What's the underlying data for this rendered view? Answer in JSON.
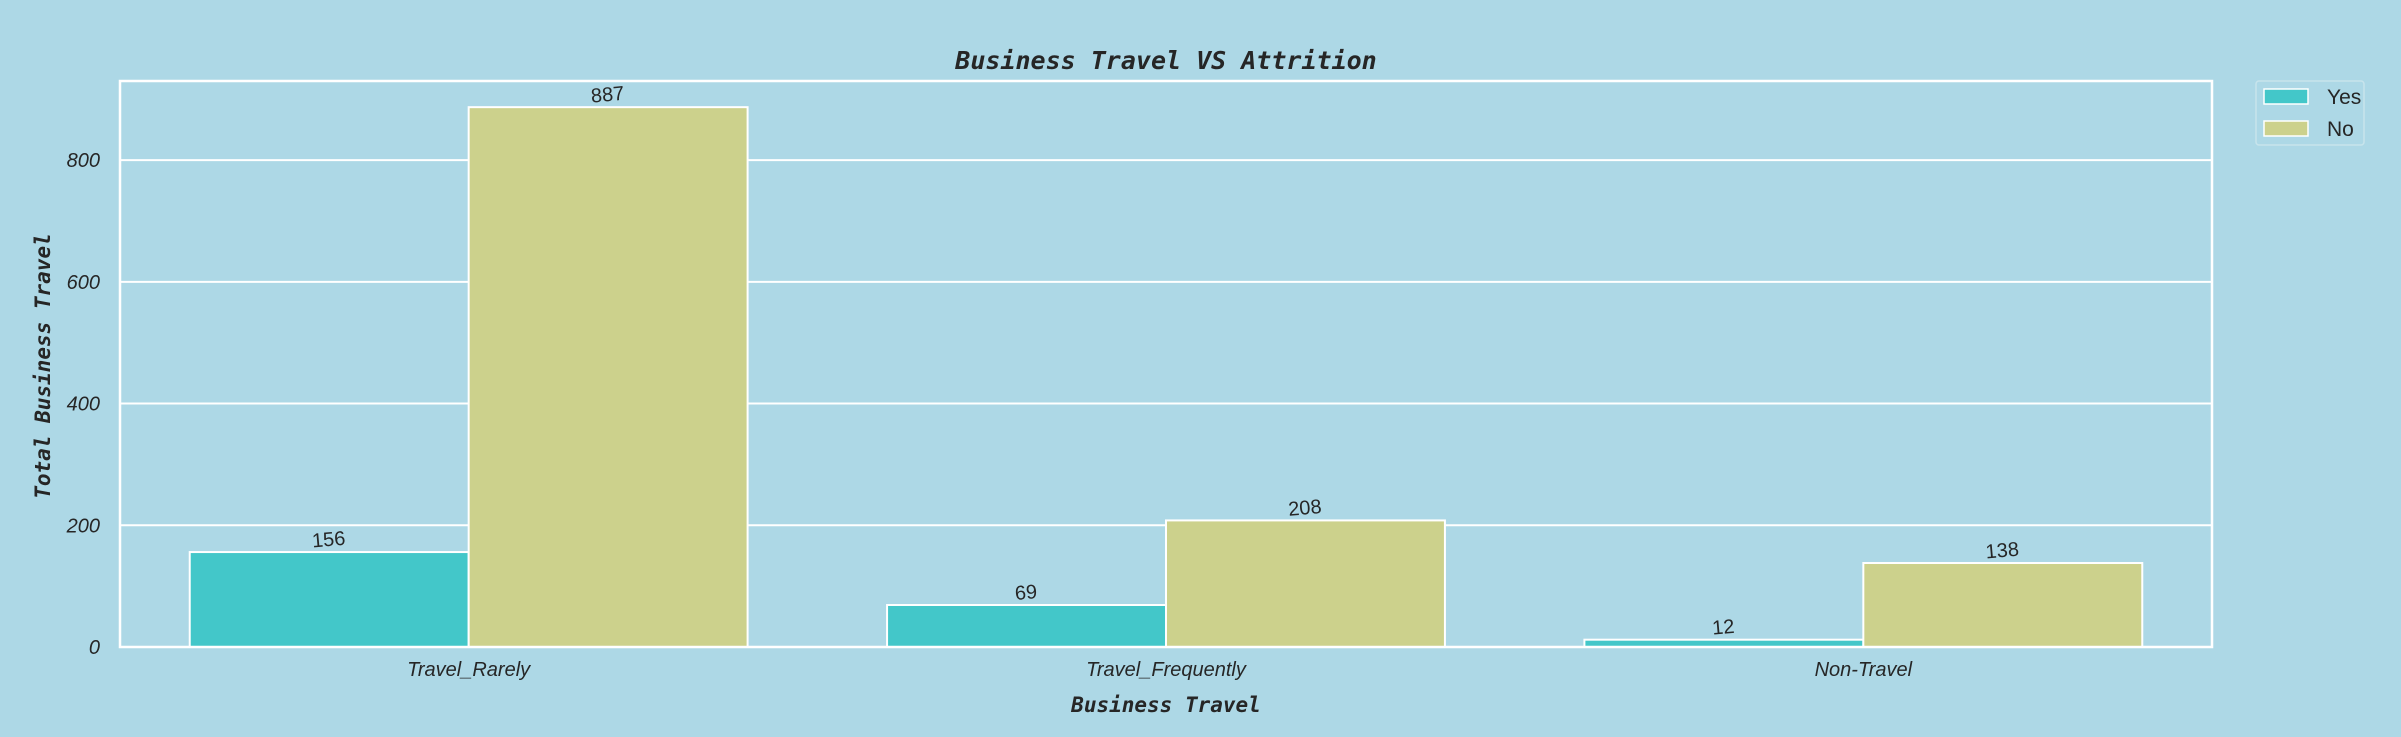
{
  "colors": {
    "background": "#add8e6",
    "yes": "#43c7c9",
    "no": "#ccd18c",
    "grid": "#ffffff",
    "text": "#262626"
  },
  "chart_data": {
    "type": "bar",
    "title": "Business Travel VS Attrition",
    "xlabel": "Business Travel",
    "ylabel": "Total Business Travel",
    "categories": [
      "Travel_Rarely",
      "Travel_Frequently",
      "Non-Travel"
    ],
    "series": [
      {
        "name": "Yes",
        "values": [
          156,
          69,
          12
        ]
      },
      {
        "name": "No",
        "values": [
          887,
          208,
          138
        ]
      }
    ],
    "ylim": [
      0,
      930
    ],
    "yticks": [
      0,
      200,
      400,
      600,
      800
    ],
    "grid": true,
    "legend_position": "upper-right-outside"
  }
}
